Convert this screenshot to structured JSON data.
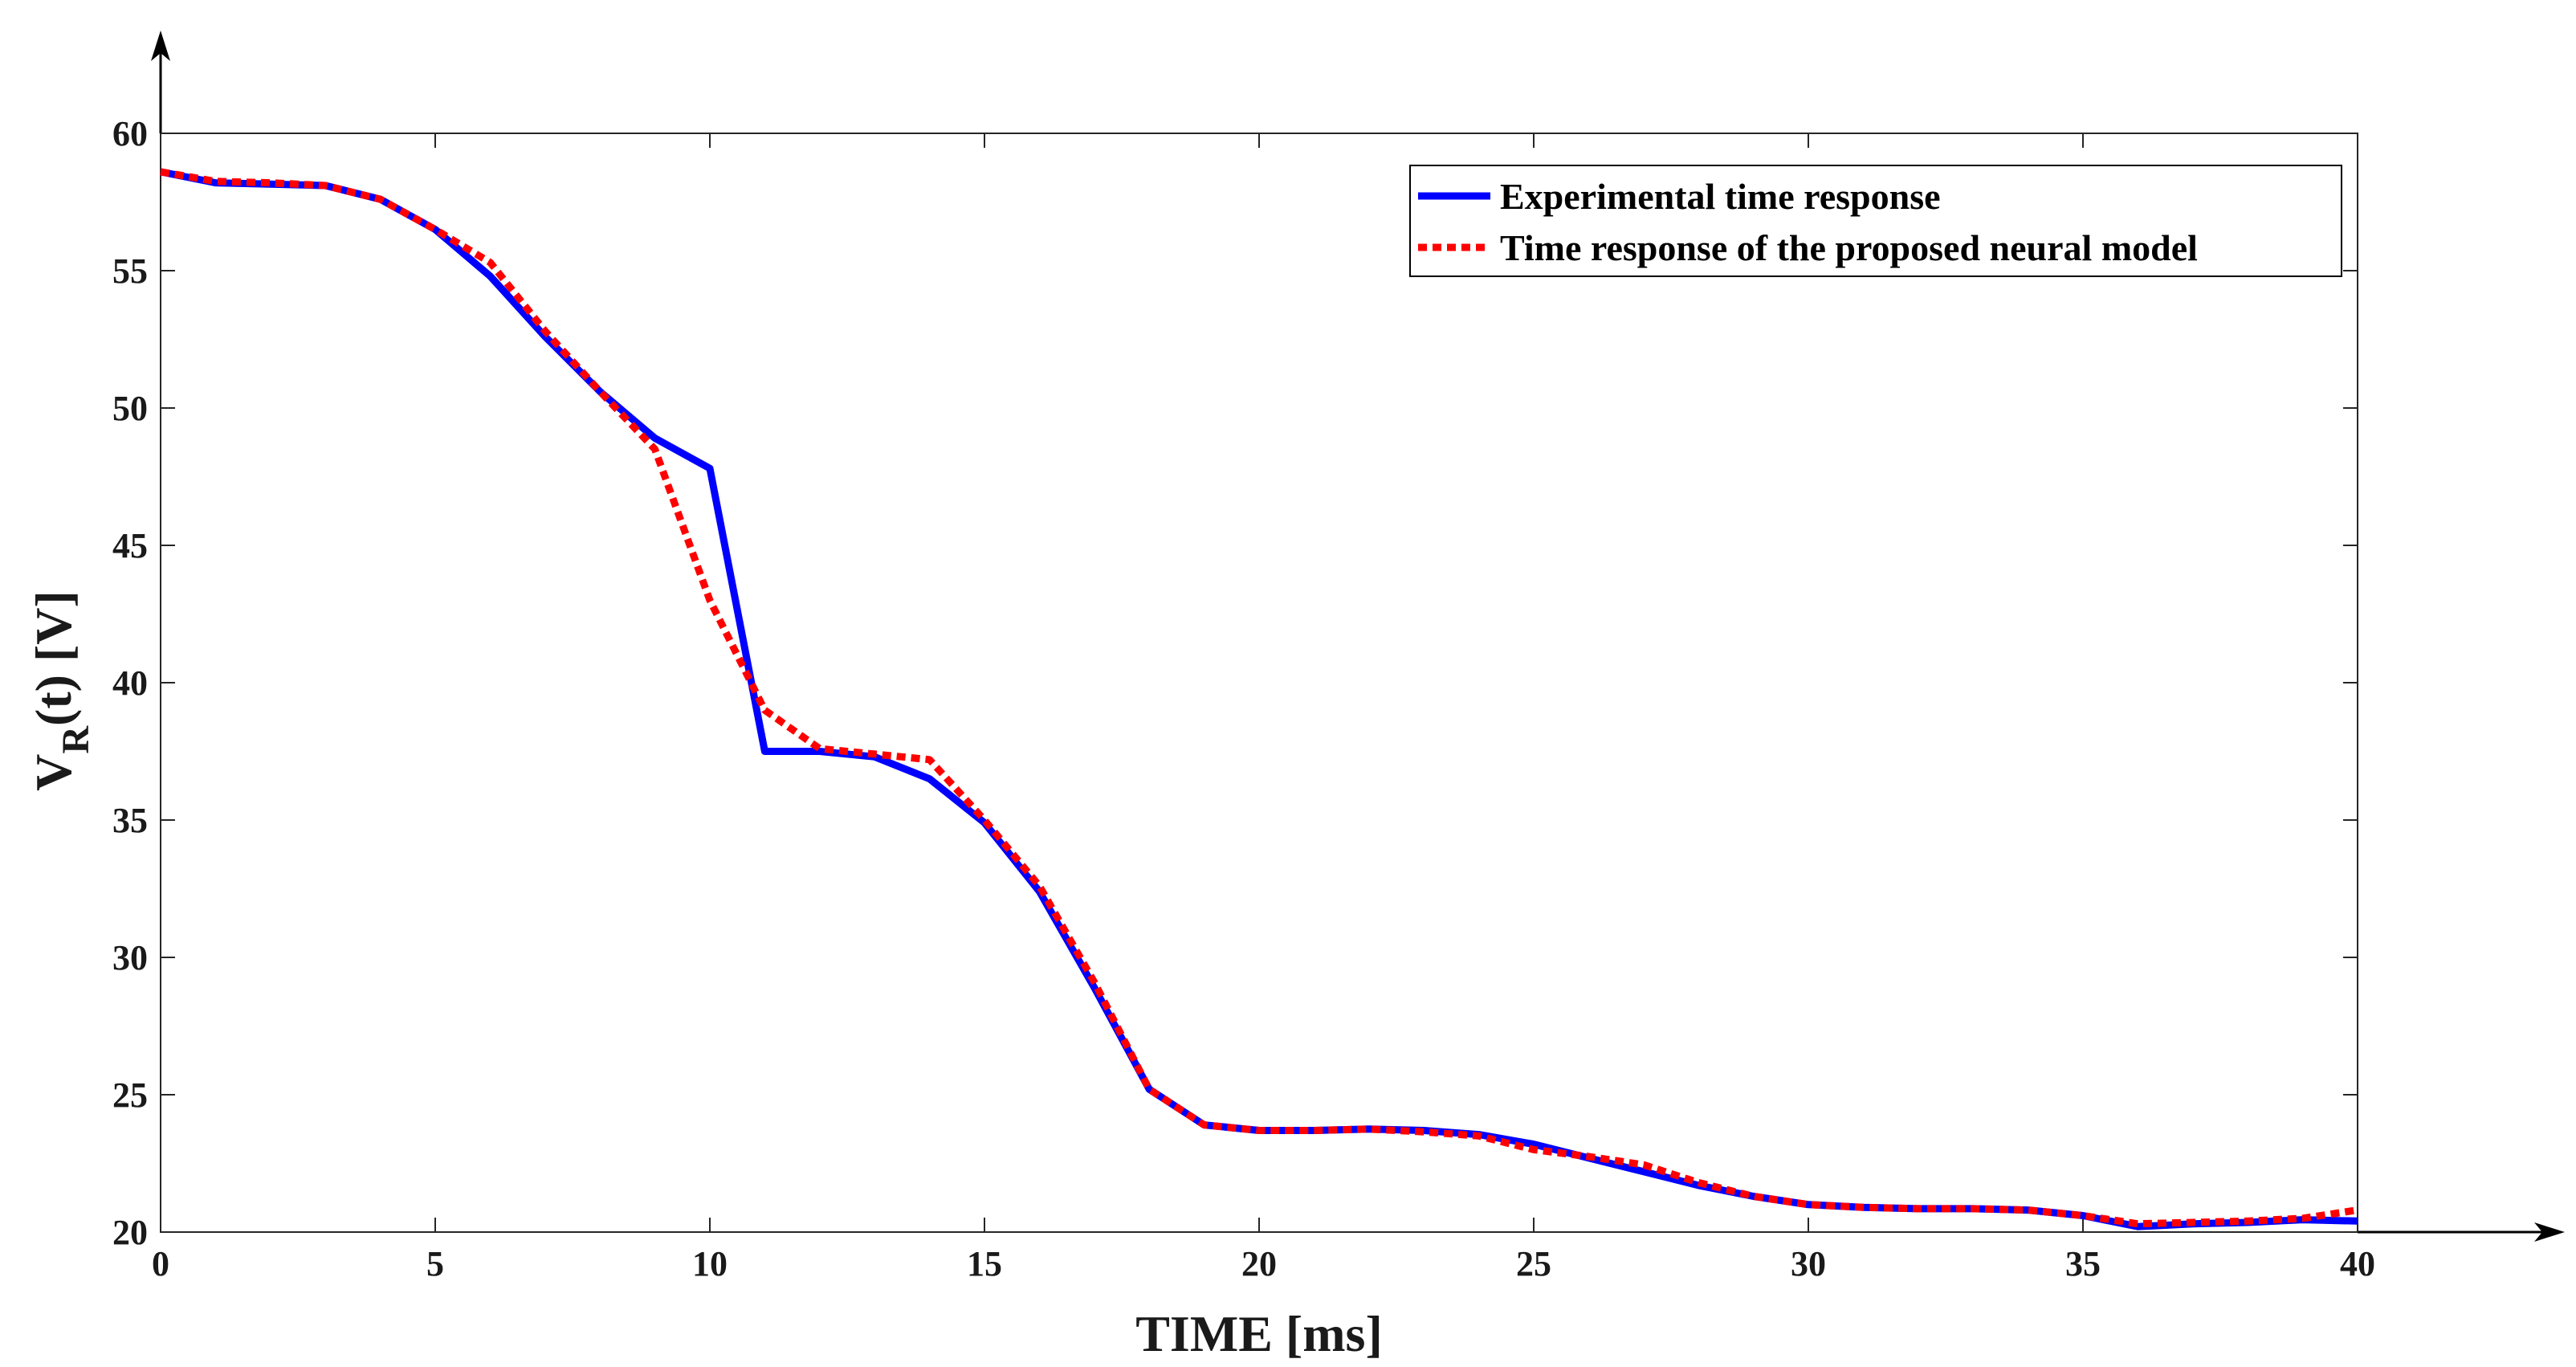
{
  "chart_data": {
    "type": "line",
    "xlabel": "TIME [ms]",
    "ylabel": {
      "main": "V",
      "sub": "R",
      "rest": "(t) [V]"
    },
    "xlim": [
      0,
      40
    ],
    "ylim": [
      20,
      60
    ],
    "xticks": [
      0,
      5,
      10,
      15,
      20,
      25,
      30,
      35,
      40
    ],
    "yticks": [
      20,
      25,
      30,
      35,
      40,
      45,
      50,
      55,
      60
    ],
    "grid": false,
    "legend_position": "top-right",
    "series": [
      {
        "name": "Experimental time response",
        "color": "#0000ff",
        "style": "solid",
        "x": [
          0,
          1,
          2,
          3,
          4,
          5,
          6,
          7,
          8,
          9,
          10,
          11,
          12,
          13,
          14,
          15,
          16,
          17,
          18,
          19,
          20,
          21,
          22,
          23,
          24,
          25,
          26,
          27,
          28,
          29,
          30,
          31,
          32,
          33,
          34,
          35,
          36,
          37,
          38,
          39,
          40
        ],
        "y": [
          58.6,
          58.2,
          58.15,
          58.1,
          57.6,
          56.5,
          54.8,
          52.6,
          50.6,
          48.9,
          47.8,
          37.5,
          37.5,
          37.3,
          36.5,
          34.9,
          32.4,
          28.9,
          25.2,
          23.9,
          23.7,
          23.7,
          23.75,
          23.7,
          23.55,
          23.2,
          22.7,
          22.2,
          21.7,
          21.3,
          21.0,
          20.9,
          20.85,
          20.85,
          20.8,
          20.6,
          20.2,
          20.3,
          20.35,
          20.45,
          20.4
        ]
      },
      {
        "name": "Time response of the proposed neural model",
        "color": "#ff0000",
        "style": "dotted",
        "x": [
          0,
          1,
          2,
          3,
          4,
          5,
          6,
          7,
          8,
          9,
          10,
          11,
          12,
          13,
          14,
          15,
          16,
          17,
          18,
          19,
          20,
          21,
          22,
          23,
          24,
          25,
          26,
          27,
          28,
          29,
          30,
          31,
          32,
          33,
          34,
          35,
          36,
          37,
          38,
          39,
          40
        ],
        "y": [
          58.6,
          58.25,
          58.2,
          58.1,
          57.6,
          56.5,
          55.3,
          52.8,
          50.6,
          48.5,
          43.0,
          39.0,
          37.6,
          37.4,
          37.2,
          35.0,
          32.6,
          29.1,
          25.2,
          23.9,
          23.7,
          23.7,
          23.75,
          23.65,
          23.5,
          23.0,
          22.75,
          22.45,
          21.8,
          21.3,
          21.0,
          20.9,
          20.85,
          20.85,
          20.8,
          20.6,
          20.3,
          20.35,
          20.4,
          20.5,
          20.8
        ]
      }
    ]
  }
}
